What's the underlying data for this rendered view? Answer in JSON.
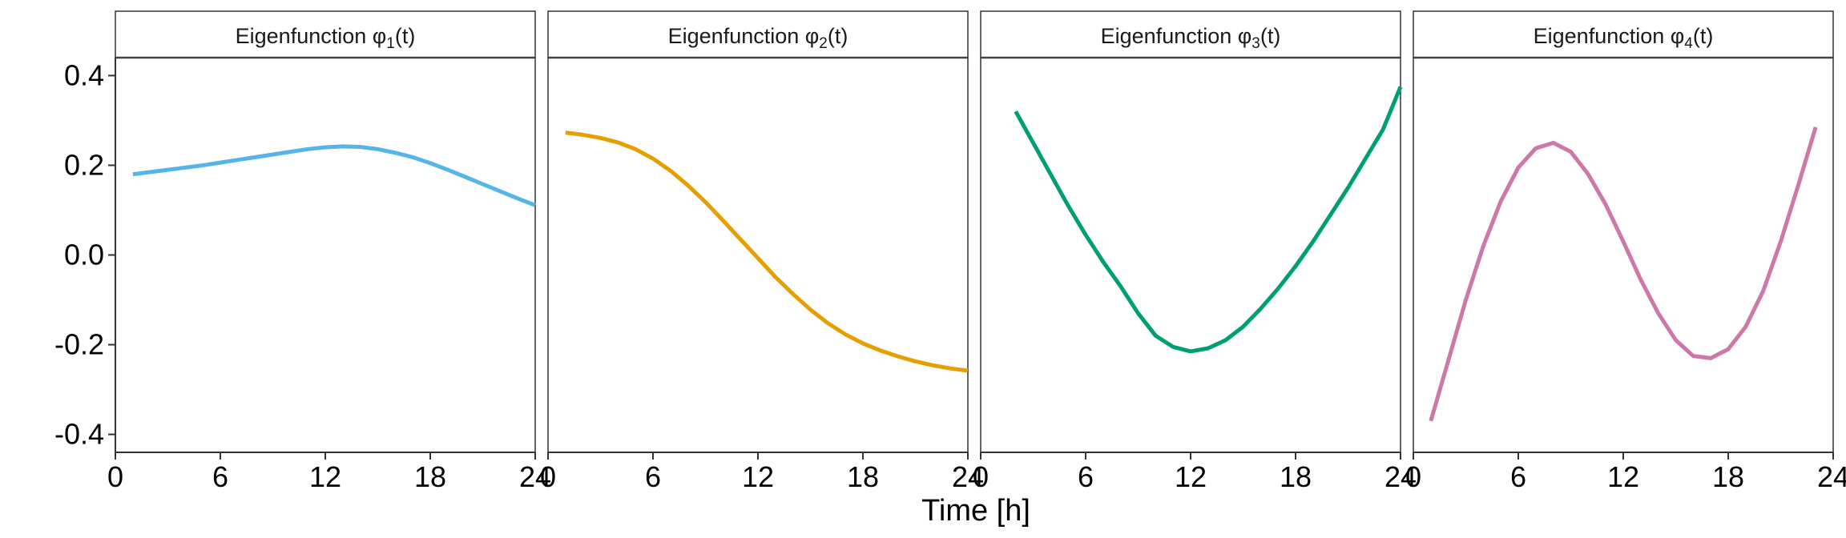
{
  "chart_data": {
    "type": "line",
    "layout": "facet_wrap",
    "xlabel": "Time [h]",
    "ylabel": "",
    "xlim": [
      0,
      24
    ],
    "ylim": [
      -0.44,
      0.44
    ],
    "x_ticks": [
      0,
      6,
      12,
      18,
      24
    ],
    "x_tick_labels": [
      "0",
      "6",
      "12",
      "18",
      "24"
    ],
    "y_ticks": [
      -0.4,
      -0.2,
      0.0,
      0.2,
      0.4
    ],
    "y_tick_labels": [
      "-0.4",
      "-0.2",
      "0.0",
      "0.2",
      "0.4"
    ],
    "grid": false,
    "panels": [
      {
        "title": "Eigenfunction φ1(t)",
        "title_prefix": "Eigenfunction φ",
        "title_subscript": "1",
        "title_suffix": "(t)",
        "color": "#56B4E9",
        "x": [
          1,
          2,
          3,
          4,
          5,
          6,
          7,
          8,
          9,
          10,
          11,
          12,
          13,
          14,
          15,
          16,
          17,
          18,
          19,
          20,
          21,
          22,
          23,
          24
        ],
        "y": [
          0.18,
          0.185,
          0.19,
          0.195,
          0.2,
          0.206,
          0.212,
          0.218,
          0.224,
          0.23,
          0.236,
          0.24,
          0.242,
          0.241,
          0.236,
          0.228,
          0.218,
          0.205,
          0.19,
          0.174,
          0.158,
          0.142,
          0.126,
          0.111
        ]
      },
      {
        "title": "Eigenfunction φ2(t)",
        "title_prefix": "Eigenfunction φ",
        "title_subscript": "2",
        "title_suffix": "(t)",
        "color": "#E69F00",
        "x": [
          1,
          2,
          3,
          4,
          5,
          6,
          7,
          8,
          9,
          10,
          11,
          12,
          13,
          14,
          15,
          16,
          17,
          18,
          19,
          20,
          21,
          22,
          23,
          24
        ],
        "y": [
          0.273,
          0.268,
          0.261,
          0.251,
          0.236,
          0.215,
          0.188,
          0.155,
          0.118,
          0.077,
          0.035,
          -0.007,
          -0.049,
          -0.087,
          -0.122,
          -0.152,
          -0.177,
          -0.197,
          -0.213,
          -0.226,
          -0.237,
          -0.246,
          -0.253,
          -0.258
        ]
      },
      {
        "title": "Eigenfunction φ3(t)",
        "title_prefix": "Eigenfunction φ",
        "title_subscript": "3",
        "title_suffix": "(t)",
        "color": "#009E73",
        "x": [
          2,
          3,
          4,
          5,
          6,
          7,
          8,
          9,
          10,
          11,
          12,
          13,
          14,
          15,
          16,
          17,
          18,
          19,
          20,
          21,
          22,
          23,
          24
        ],
        "y": [
          0.32,
          0.25,
          0.18,
          0.11,
          0.045,
          -0.015,
          -0.07,
          -0.13,
          -0.18,
          -0.205,
          -0.215,
          -0.208,
          -0.19,
          -0.16,
          -0.12,
          -0.075,
          -0.025,
          0.03,
          0.09,
          0.15,
          0.215,
          0.28,
          0.375
        ]
      },
      {
        "title": "Eigenfunction φ4(t)",
        "title_prefix": "Eigenfunction φ",
        "title_subscript": "4",
        "title_suffix": "(t)",
        "color": "#CC79A7",
        "x": [
          1,
          2,
          3,
          4,
          5,
          6,
          7,
          8,
          9,
          10,
          11,
          12,
          13,
          14,
          15,
          16,
          17,
          18,
          19,
          20,
          21,
          22,
          23
        ],
        "y": [
          -0.37,
          -0.235,
          -0.1,
          0.02,
          0.12,
          0.195,
          0.238,
          0.25,
          0.23,
          0.18,
          0.112,
          0.03,
          -0.055,
          -0.13,
          -0.19,
          -0.225,
          -0.23,
          -0.21,
          -0.16,
          -0.08,
          0.03,
          0.155,
          0.285
        ]
      }
    ]
  }
}
